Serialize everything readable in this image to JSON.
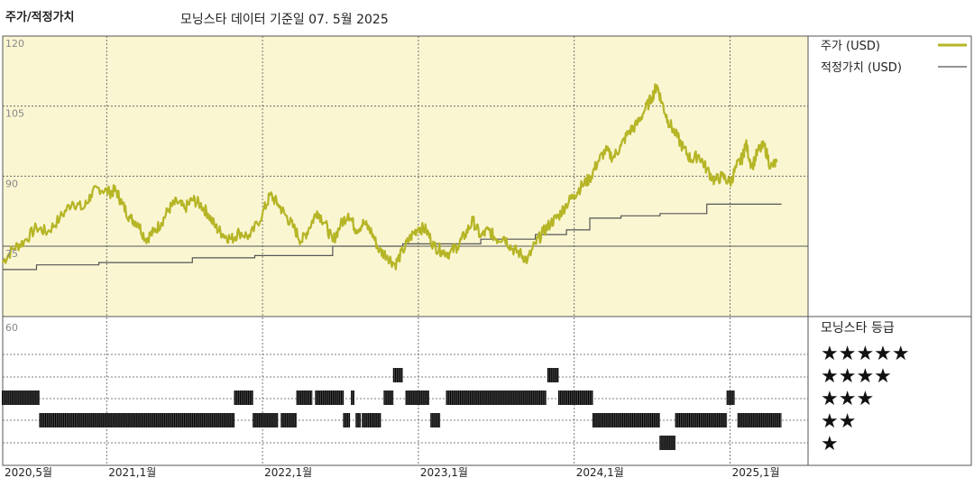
{
  "header": {
    "left_title": "주가/적정가치",
    "source_note": "모닝스타 데이터 기준일 07. 5월 2025"
  },
  "colors": {
    "price_line": "#b5b526",
    "fair_line": "#555555",
    "upper_bg": "#fbf6d2",
    "grid": "#555555",
    "bar": "#222222"
  },
  "chart_data": {
    "type": "line",
    "y_ticks": [
      "120",
      "105",
      "90",
      "75"
    ],
    "ylim": [
      70,
      125
    ],
    "x_ticks": [
      "2020,5월",
      "2021,1월",
      "2022,1월",
      "2023,1월",
      "2024,1월",
      "2025,1월"
    ],
    "x_tick_dates": [
      2020.333,
      2021.0,
      2022.0,
      2023.0,
      2024.0,
      2025.0
    ],
    "xlim": [
      2020.333,
      2025.5
    ],
    "series": [
      {
        "name": "주가 (USD)",
        "points": [
          [
            2020.33,
            71.5
          ],
          [
            2020.4,
            74.5
          ],
          [
            2020.47,
            76.0
          ],
          [
            2020.55,
            79.0
          ],
          [
            2020.62,
            78.0
          ],
          [
            2020.7,
            81.0
          ],
          [
            2020.78,
            84.5
          ],
          [
            2020.85,
            83.0
          ],
          [
            2020.9,
            86.0
          ],
          [
            2020.95,
            87.5
          ],
          [
            2021.02,
            86.5
          ],
          [
            2021.06,
            87.0
          ],
          [
            2021.1,
            84.0
          ],
          [
            2021.15,
            81.0
          ],
          [
            2021.2,
            80.0
          ],
          [
            2021.25,
            76.5
          ],
          [
            2021.3,
            78.0
          ],
          [
            2021.35,
            80.0
          ],
          [
            2021.4,
            83.0
          ],
          [
            2021.45,
            84.5
          ],
          [
            2021.5,
            83.0
          ],
          [
            2021.55,
            85.0
          ],
          [
            2021.6,
            84.0
          ],
          [
            2021.65,
            82.0
          ],
          [
            2021.7,
            79.0
          ],
          [
            2021.75,
            77.5
          ],
          [
            2021.8,
            76.5
          ],
          [
            2021.85,
            78.0
          ],
          [
            2021.92,
            77.0
          ],
          [
            2022.0,
            82.0
          ],
          [
            2022.05,
            86.0
          ],
          [
            2022.1,
            84.0
          ],
          [
            2022.15,
            81.5
          ],
          [
            2022.2,
            79.0
          ],
          [
            2022.25,
            76.0
          ],
          [
            2022.3,
            79.0
          ],
          [
            2022.35,
            82.5
          ],
          [
            2022.4,
            80.0
          ],
          [
            2022.45,
            76.0
          ],
          [
            2022.5,
            79.5
          ],
          [
            2022.55,
            82.0
          ],
          [
            2022.6,
            78.5
          ],
          [
            2022.65,
            80.0
          ],
          [
            2022.7,
            78.0
          ],
          [
            2022.75,
            74.0
          ],
          [
            2022.8,
            73.0
          ],
          [
            2022.85,
            71.0
          ],
          [
            2022.9,
            74.0
          ],
          [
            2022.95,
            77.0
          ],
          [
            2023.0,
            79.0
          ],
          [
            2023.05,
            78.5
          ],
          [
            2023.1,
            75.0
          ],
          [
            2023.15,
            74.0
          ],
          [
            2023.2,
            73.5
          ],
          [
            2023.25,
            75.0
          ],
          [
            2023.3,
            77.5
          ],
          [
            2023.35,
            80.5
          ],
          [
            2023.4,
            77.0
          ],
          [
            2023.45,
            78.5
          ],
          [
            2023.5,
            76.5
          ],
          [
            2023.55,
            77.0
          ],
          [
            2023.6,
            74.5
          ],
          [
            2023.65,
            73.5
          ],
          [
            2023.7,
            72.0
          ],
          [
            2023.75,
            75.5
          ],
          [
            2023.8,
            78.0
          ],
          [
            2023.85,
            80.0
          ],
          [
            2023.9,
            81.5
          ],
          [
            2023.95,
            84.0
          ],
          [
            2024.0,
            86.0
          ],
          [
            2024.05,
            88.0
          ],
          [
            2024.1,
            89.5
          ],
          [
            2024.15,
            93.0
          ],
          [
            2024.2,
            95.5
          ],
          [
            2024.25,
            94.0
          ],
          [
            2024.3,
            96.5
          ],
          [
            2024.35,
            99.5
          ],
          [
            2024.4,
            101.0
          ],
          [
            2024.45,
            104.0
          ],
          [
            2024.5,
            107.0
          ],
          [
            2024.53,
            109.5
          ],
          [
            2024.56,
            106.0
          ],
          [
            2024.6,
            102.0
          ],
          [
            2024.65,
            99.0
          ],
          [
            2024.7,
            96.0
          ],
          [
            2024.75,
            93.5
          ],
          [
            2024.8,
            94.5
          ],
          [
            2024.85,
            91.5
          ],
          [
            2024.9,
            89.0
          ],
          [
            2024.95,
            90.0
          ],
          [
            2025.0,
            88.5
          ],
          [
            2025.04,
            92.0
          ],
          [
            2025.08,
            94.0
          ],
          [
            2025.1,
            97.0
          ],
          [
            2025.14,
            92.0
          ],
          [
            2025.18,
            95.5
          ],
          [
            2025.22,
            96.5
          ],
          [
            2025.26,
            92.0
          ],
          [
            2025.3,
            93.0
          ]
        ]
      },
      {
        "name": "적정가치 (USD)",
        "steps": [
          [
            2020.33,
            2020.55,
            70.0
          ],
          [
            2020.55,
            2020.95,
            71.0
          ],
          [
            2020.95,
            2021.55,
            71.5
          ],
          [
            2021.55,
            2021.95,
            72.5
          ],
          [
            2021.95,
            2022.45,
            73.0
          ],
          [
            2022.45,
            2022.9,
            75.0
          ],
          [
            2022.9,
            2023.4,
            75.5
          ],
          [
            2023.4,
            2023.75,
            76.5
          ],
          [
            2023.75,
            2023.95,
            77.5
          ],
          [
            2023.95,
            2024.1,
            78.5
          ],
          [
            2024.1,
            2024.3,
            81.0
          ],
          [
            2024.3,
            2024.55,
            81.5
          ],
          [
            2024.55,
            2024.85,
            82.0
          ],
          [
            2024.85,
            2025.33,
            84.0
          ]
        ]
      }
    ],
    "legend": [
      {
        "label": "주가 (USD)"
      },
      {
        "label": "적정가치 (USD)"
      }
    ],
    "rating_panel": {
      "title": "모닝스타 등급",
      "levels": [
        "★★★★★",
        "★★★★",
        "★★★",
        "★★",
        "★"
      ],
      "bottom_tick": "60",
      "segments": [
        {
          "stars": 3,
          "from": 2020.33,
          "to": 2020.57
        },
        {
          "stars": 2,
          "from": 2020.57,
          "to": 2021.82
        },
        {
          "stars": 3,
          "from": 2021.82,
          "to": 2021.94
        },
        {
          "stars": 2,
          "from": 2021.94,
          "to": 2022.1
        },
        {
          "stars": 2,
          "from": 2022.12,
          "to": 2022.22
        },
        {
          "stars": 3,
          "from": 2022.22,
          "to": 2022.32
        },
        {
          "stars": 3,
          "from": 2022.34,
          "to": 2022.52
        },
        {
          "stars": 2,
          "from": 2022.52,
          "to": 2022.56
        },
        {
          "stars": 3,
          "from": 2022.57,
          "to": 2022.59
        },
        {
          "stars": 2,
          "from": 2022.6,
          "to": 2022.63
        },
        {
          "stars": 2,
          "from": 2022.64,
          "to": 2022.76
        },
        {
          "stars": 3,
          "from": 2022.78,
          "to": 2022.84
        },
        {
          "stars": 4,
          "from": 2022.84,
          "to": 2022.9
        },
        {
          "stars": 3,
          "from": 2022.92,
          "to": 2023.07
        },
        {
          "stars": 2,
          "from": 2023.08,
          "to": 2023.14
        },
        {
          "stars": 3,
          "from": 2023.18,
          "to": 2023.82
        },
        {
          "stars": 4,
          "from": 2023.83,
          "to": 2023.9
        },
        {
          "stars": 3,
          "from": 2023.9,
          "to": 2024.12
        },
        {
          "stars": 2,
          "from": 2024.12,
          "to": 2024.55
        },
        {
          "stars": 1,
          "from": 2024.55,
          "to": 2024.65
        },
        {
          "stars": 2,
          "from": 2024.65,
          "to": 2024.98
        },
        {
          "stars": 3,
          "from": 2024.98,
          "to": 2025.03
        },
        {
          "stars": 2,
          "from": 2025.05,
          "to": 2025.33
        }
      ]
    }
  }
}
